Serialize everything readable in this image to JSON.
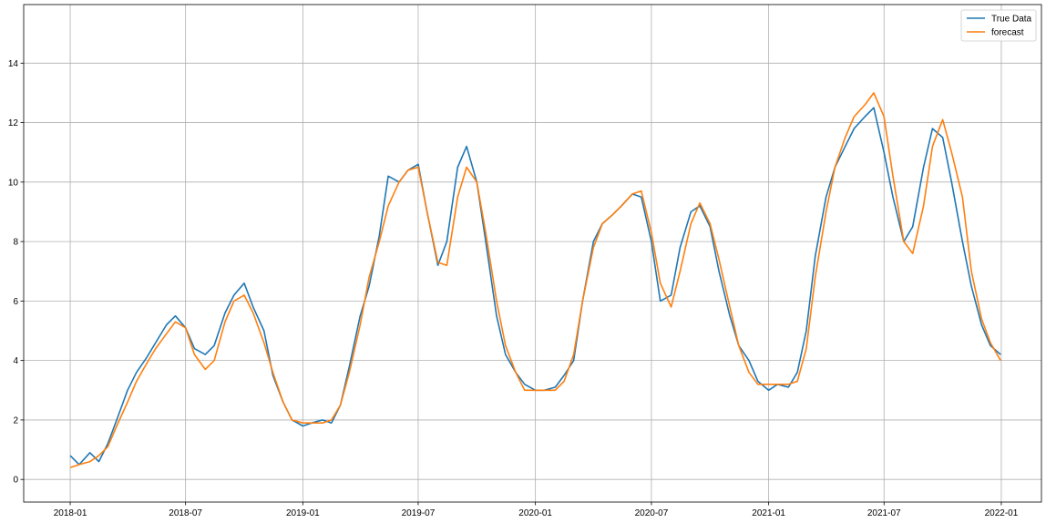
{
  "chart_data": {
    "type": "line",
    "title": "",
    "xlabel": "",
    "ylabel": "",
    "x_range": [
      "2017-10-20",
      "2022-03-05"
    ],
    "ylim": [
      -0.76,
      15.97
    ],
    "grid": true,
    "legend_position": "top-right",
    "x_ticks": [
      "2018-01",
      "2018-07",
      "2019-01",
      "2019-07",
      "2020-01",
      "2020-07",
      "2021-01",
      "2021-07",
      "2022-01"
    ],
    "y_ticks": [
      0,
      2,
      4,
      6,
      8,
      10,
      12,
      14
    ],
    "series": [
      {
        "name": "True Data",
        "color": "#1f77b4",
        "x": [
          "2018-01-01",
          "2018-01-15",
          "2018-02-01",
          "2018-02-15",
          "2018-03-01",
          "2018-03-15",
          "2018-04-01",
          "2018-04-15",
          "2018-05-01",
          "2018-05-15",
          "2018-06-01",
          "2018-06-15",
          "2018-07-01",
          "2018-07-15",
          "2018-08-01",
          "2018-08-15",
          "2018-09-01",
          "2018-09-15",
          "2018-10-01",
          "2018-10-15",
          "2018-11-01",
          "2018-11-15",
          "2018-12-01",
          "2018-12-15",
          "2019-01-01",
          "2019-01-15",
          "2019-02-01",
          "2019-02-15",
          "2019-03-01",
          "2019-03-15",
          "2019-04-01",
          "2019-04-15",
          "2019-05-01",
          "2019-05-15",
          "2019-06-01",
          "2019-06-15",
          "2019-07-01",
          "2019-07-15",
          "2019-08-01",
          "2019-08-15",
          "2019-09-01",
          "2019-09-15",
          "2019-10-01",
          "2019-10-15",
          "2019-11-01",
          "2019-11-15",
          "2019-12-01",
          "2019-12-15",
          "2020-01-01",
          "2020-01-15",
          "2020-02-01",
          "2020-02-15",
          "2020-03-01",
          "2020-03-15",
          "2020-04-01",
          "2020-04-15",
          "2020-05-01",
          "2020-05-15",
          "2020-06-01",
          "2020-06-15",
          "2020-07-01",
          "2020-07-15",
          "2020-08-01",
          "2020-08-15",
          "2020-09-01",
          "2020-09-15",
          "2020-10-01",
          "2020-10-15",
          "2020-11-01",
          "2020-11-15",
          "2020-12-01",
          "2020-12-15",
          "2021-01-01",
          "2021-01-15",
          "2021-02-01",
          "2021-02-15",
          "2021-03-01",
          "2021-03-15",
          "2021-04-01",
          "2021-04-15",
          "2021-05-01",
          "2021-05-15",
          "2021-06-01",
          "2021-06-15",
          "2021-07-01",
          "2021-07-15",
          "2021-08-01",
          "2021-08-15",
          "2021-09-01",
          "2021-09-15",
          "2021-10-01",
          "2021-10-15",
          "2021-11-01",
          "2021-11-15",
          "2021-12-01",
          "2021-12-15",
          "2021-12-31"
        ],
        "values": [
          0.8,
          0.5,
          0.9,
          0.6,
          1.2,
          2.0,
          3.0,
          3.6,
          4.1,
          4.6,
          5.2,
          5.5,
          5.1,
          4.4,
          4.2,
          4.5,
          5.6,
          6.2,
          6.6,
          5.8,
          5.0,
          3.5,
          2.6,
          2.0,
          1.8,
          1.9,
          2.0,
          1.9,
          2.5,
          3.8,
          5.5,
          6.5,
          8.2,
          10.2,
          10.0,
          10.4,
          10.6,
          9.0,
          7.2,
          8.0,
          10.5,
          11.2,
          10.0,
          8.0,
          5.5,
          4.2,
          3.6,
          3.2,
          3.0,
          3.0,
          3.1,
          3.5,
          4.0,
          6.0,
          8.0,
          8.6,
          8.9,
          9.2,
          9.6,
          9.5,
          8.0,
          6.0,
          6.2,
          7.8,
          9.0,
          9.2,
          8.5,
          7.0,
          5.5,
          4.5,
          4.0,
          3.3,
          3.0,
          3.2,
          3.1,
          3.6,
          5.0,
          7.5,
          9.5,
          10.5,
          11.2,
          11.8,
          12.2,
          12.5,
          11.0,
          9.5,
          8.0,
          8.5,
          10.5,
          11.8,
          11.5,
          10.0,
          8.0,
          6.5,
          5.2,
          4.5,
          4.2
        ]
      },
      {
        "name": "forecast",
        "color": "#ff7f0e",
        "x": [
          "2018-01-01",
          "2018-01-15",
          "2018-02-01",
          "2018-02-15",
          "2018-03-01",
          "2018-03-15",
          "2018-04-01",
          "2018-04-15",
          "2018-05-01",
          "2018-05-15",
          "2018-06-01",
          "2018-06-15",
          "2018-07-01",
          "2018-07-15",
          "2018-08-01",
          "2018-08-15",
          "2018-09-01",
          "2018-09-15",
          "2018-10-01",
          "2018-10-15",
          "2018-11-01",
          "2018-11-15",
          "2018-12-01",
          "2018-12-15",
          "2019-01-01",
          "2019-01-15",
          "2019-02-01",
          "2019-02-15",
          "2019-03-01",
          "2019-03-15",
          "2019-04-01",
          "2019-04-15",
          "2019-05-01",
          "2019-05-15",
          "2019-06-01",
          "2019-06-15",
          "2019-07-01",
          "2019-07-15",
          "2019-08-01",
          "2019-08-15",
          "2019-09-01",
          "2019-09-15",
          "2019-10-01",
          "2019-10-15",
          "2019-11-01",
          "2019-11-15",
          "2019-12-01",
          "2019-12-15",
          "2020-01-01",
          "2020-01-15",
          "2020-02-01",
          "2020-02-15",
          "2020-03-01",
          "2020-03-15",
          "2020-04-01",
          "2020-04-15",
          "2020-05-01",
          "2020-05-15",
          "2020-06-01",
          "2020-06-15",
          "2020-07-01",
          "2020-07-15",
          "2020-08-01",
          "2020-08-15",
          "2020-09-01",
          "2020-09-15",
          "2020-10-01",
          "2020-10-15",
          "2020-11-01",
          "2020-11-15",
          "2020-12-01",
          "2020-12-15",
          "2021-01-01",
          "2021-01-15",
          "2021-02-01",
          "2021-02-15",
          "2021-03-01",
          "2021-03-15",
          "2021-04-01",
          "2021-04-15",
          "2021-05-01",
          "2021-05-15",
          "2021-06-01",
          "2021-06-15",
          "2021-07-01",
          "2021-07-15",
          "2021-08-01",
          "2021-08-15",
          "2021-09-01",
          "2021-09-15",
          "2021-10-01",
          "2021-10-15",
          "2021-11-01",
          "2021-11-15",
          "2021-12-01",
          "2021-12-15",
          "2021-12-31"
        ],
        "values": [
          0.4,
          0.5,
          0.6,
          0.8,
          1.1,
          1.8,
          2.6,
          3.3,
          3.9,
          4.4,
          4.9,
          5.3,
          5.1,
          4.2,
          3.7,
          4.0,
          5.3,
          6.0,
          6.2,
          5.6,
          4.6,
          3.6,
          2.6,
          2.0,
          1.9,
          1.9,
          1.9,
          2.0,
          2.5,
          3.6,
          5.2,
          6.8,
          8.0,
          9.2,
          10.0,
          10.4,
          10.5,
          9.0,
          7.3,
          7.2,
          9.5,
          10.5,
          10.0,
          8.3,
          6.0,
          4.5,
          3.6,
          3.0,
          3.0,
          3.0,
          3.0,
          3.3,
          4.2,
          6.0,
          7.8,
          8.6,
          8.9,
          9.2,
          9.6,
          9.7,
          8.3,
          6.6,
          5.8,
          7.0,
          8.6,
          9.3,
          8.6,
          7.4,
          5.8,
          4.5,
          3.6,
          3.2,
          3.2,
          3.2,
          3.2,
          3.3,
          4.4,
          6.8,
          9.0,
          10.5,
          11.5,
          12.2,
          12.6,
          13.0,
          12.2,
          10.2,
          8.0,
          7.6,
          9.2,
          11.2,
          12.1,
          11.0,
          9.5,
          7.0,
          5.4,
          4.6,
          4.0
        ]
      }
    ]
  }
}
